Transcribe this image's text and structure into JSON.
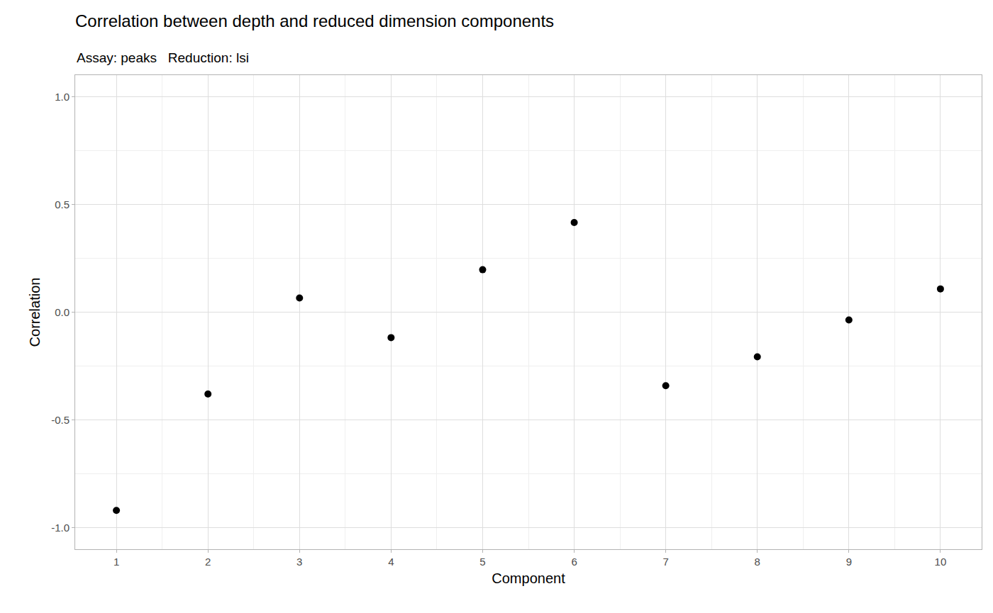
{
  "chart_data": {
    "type": "scatter",
    "title": "Correlation between depth and reduced dimension components",
    "subtitle": "Assay: peaks   Reduction: lsi",
    "x_label": "Component",
    "y_label": "Correlation",
    "x": [
      1,
      2,
      3,
      4,
      5,
      6,
      7,
      8,
      9,
      10
    ],
    "values": [
      -0.92,
      -0.38,
      0.066,
      -0.118,
      0.197,
      0.416,
      -0.341,
      -0.207,
      -0.036,
      0.108
    ],
    "color": "#000000",
    "marker": "circle",
    "xlim": [
      0.55,
      10.45
    ],
    "xticks": [
      1,
      2,
      3,
      4,
      5,
      6,
      7,
      8,
      9,
      10
    ],
    "ylim": [
      -1.1,
      1.1
    ],
    "yticks": [
      {
        "value": -1,
        "label": "-1.0"
      },
      -0.5,
      {
        "value": 0,
        "label": "0.0"
      },
      0.5,
      {
        "value": 1,
        "label": "1.0"
      }
    ],
    "grid": true
  }
}
